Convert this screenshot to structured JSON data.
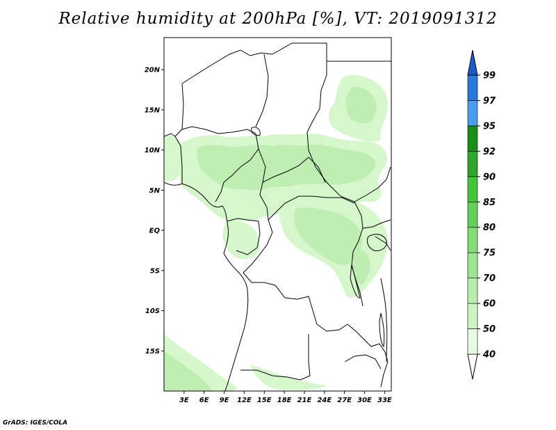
{
  "title": "Relative humidity at 200hPa [%], VT: 2019091312",
  "footer": "GrADS: IGES/COLA",
  "map": {
    "lon_range": [
      0,
      34
    ],
    "lat_range": [
      -20,
      24
    ],
    "lat_ticks": [
      {
        "value": 20,
        "label": "20N"
      },
      {
        "value": 15,
        "label": "15N"
      },
      {
        "value": 10,
        "label": "10N"
      },
      {
        "value": 5,
        "label": "5N"
      },
      {
        "value": 0,
        "label": "EQ"
      },
      {
        "value": -5,
        "label": "5S"
      },
      {
        "value": -10,
        "label": "10S"
      },
      {
        "value": -15,
        "label": "15S"
      }
    ],
    "lon_ticks": [
      {
        "value": 3,
        "label": "3E"
      },
      {
        "value": 6,
        "label": "6E"
      },
      {
        "value": 9,
        "label": "9E"
      },
      {
        "value": 12,
        "label": "12E"
      },
      {
        "value": 15,
        "label": "15E"
      },
      {
        "value": 18,
        "label": "18E"
      },
      {
        "value": 21,
        "label": "21E"
      },
      {
        "value": 24,
        "label": "24E"
      },
      {
        "value": 27,
        "label": "27E"
      },
      {
        "value": 30,
        "label": "30E"
      },
      {
        "value": 33,
        "label": "33E"
      }
    ]
  },
  "colorbar": {
    "labels": [
      "40",
      "50",
      "60",
      "70",
      "75",
      "80",
      "85",
      "90",
      "92",
      "95",
      "97",
      "99"
    ],
    "colors": [
      "#e8fbe3",
      "#cdf5c2",
      "#b7eeac",
      "#9fe592",
      "#84dc78",
      "#63d15a",
      "#45c43e",
      "#2da82a",
      "#168e18",
      "#4a9cf0",
      "#2a78e0",
      "#1e5ccc"
    ]
  },
  "humidity_colors": {
    "light": "#d6f6cc",
    "medium": "#bfeeb2",
    "strong": "#a6e596"
  }
}
